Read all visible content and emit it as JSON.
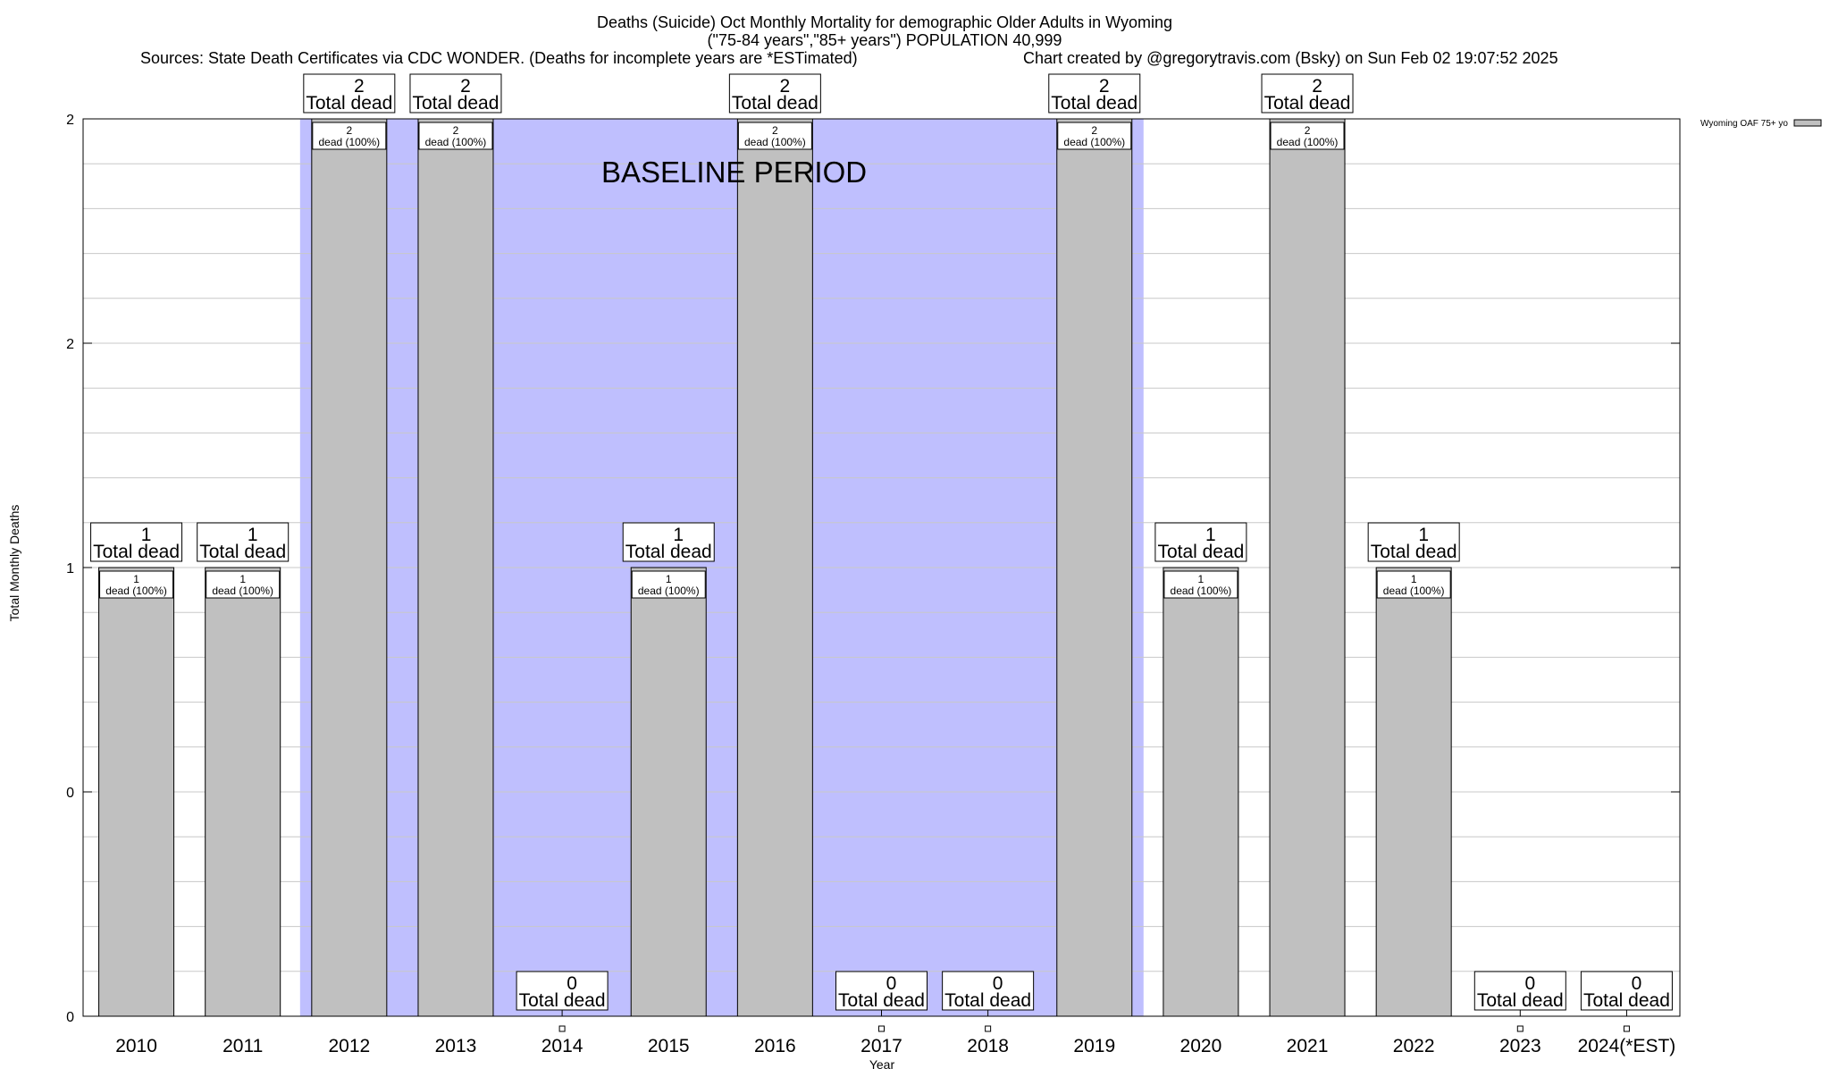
{
  "chart_data": {
    "type": "bar",
    "title_lines": [
      "Deaths (Suicide) Oct Monthly Mortality for demographic Older Adults in Wyoming",
      "(\"75-84 years\",\"85+ years\") POPULATION 40,999"
    ],
    "sources_text": "Sources: State Death Certificates via CDC WONDER. (Deaths for incomplete years are *ESTimated)",
    "credit_text": "Chart created by @gregorytravis.com (Bsky) on Sun Feb 02 19:07:52 2025",
    "xlabel": "Year",
    "ylabel": "Total Monthly Deaths",
    "categories": [
      "2010",
      "2011",
      "2012",
      "2013",
      "2014",
      "2015",
      "2016",
      "2017",
      "2018",
      "2019",
      "2020",
      "2021",
      "2022",
      "2023",
      "2024(*EST)"
    ],
    "series": [
      {
        "name": "Wyoming OAF 75+ yo",
        "values": [
          1,
          1,
          2,
          2,
          0,
          1,
          2,
          0,
          0,
          2,
          1,
          2,
          1,
          0,
          0
        ]
      }
    ],
    "ylim": [
      0,
      2
    ],
    "ytick_labels": [
      "0",
      "0",
      "1",
      "2",
      "2"
    ],
    "baseline_period": {
      "label": "BASELINE PERIOD",
      "from": "2012",
      "to": "2019"
    },
    "total_label_suffix": "Total dead",
    "inner_label_suffix": "dead (100%)",
    "legend_position": "top-right",
    "grid": true,
    "colors": {
      "bar": "#c0c0c0",
      "baseline": "#bfbffe",
      "grid": "#c8c8c8"
    }
  }
}
